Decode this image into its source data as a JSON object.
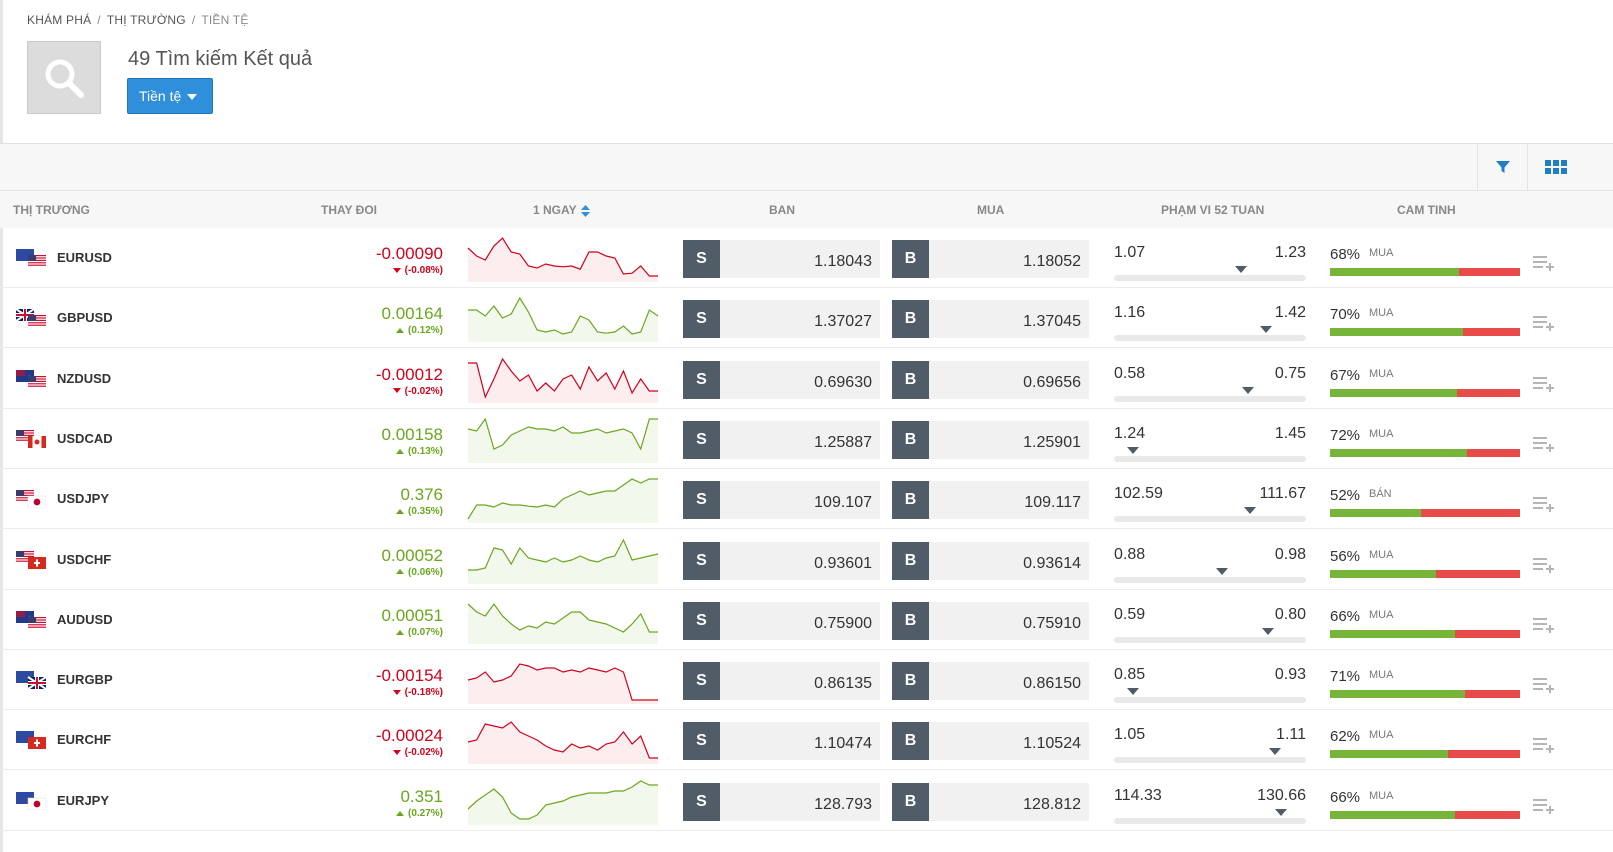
{
  "breadcrumb": [
    "KHÁM PHÁ",
    "THỊ TRƯỜNG",
    "TIỀN TỆ"
  ],
  "results_title": "49 Tìm kiếm Kết quả",
  "filter_button": {
    "label": "Tiền tệ",
    "icon": "chevron-down-icon"
  },
  "toolbar": {
    "filter_icon": "filter-icon",
    "grid_icon": "grid-view-icon"
  },
  "columns": {
    "market": "THỊ TRƯƠNG",
    "change": "THAY ĐOI",
    "day": "1 NGAY",
    "sell": "BAN",
    "buy": "MUA",
    "range52": "PHẠM VI 52 TUAN",
    "sentiment": "CAM TINH"
  },
  "colors": {
    "accent": "#2f8fdb",
    "negative": "#d0021b",
    "positive": "#6aa71f",
    "sentiment_buy": "#77b53a",
    "sentiment_sell": "#e94b4b",
    "trade_key": "#505c67"
  },
  "rows": [
    {
      "symbol": "EURUSD",
      "change": "-0.00090",
      "pct": "(-0.08%)",
      "trend": "neg",
      "sell_key": "S",
      "sell": "1.18043",
      "buy_key": "B",
      "buy": "1.18052",
      "low": "1.07",
      "high": "1.23",
      "range_pos": 0.66,
      "sent_pct": "68%",
      "sent_dir": "MUA",
      "sent_value": 0.68,
      "spark": [
        0.25,
        0.45,
        0.55,
        0.2,
        0.0,
        0.35,
        0.4,
        0.7,
        0.75,
        0.65,
        0.7,
        0.72,
        0.7,
        0.78,
        0.35,
        0.35,
        0.45,
        0.5,
        0.9,
        0.88,
        0.7,
        0.95,
        0.95
      ]
    },
    {
      "symbol": "GBPUSD",
      "change": "0.00164",
      "pct": "(0.12%)",
      "trend": "pos",
      "sell_key": "S",
      "sell": "1.37027",
      "buy_key": "B",
      "buy": "1.37045",
      "low": "1.16",
      "high": "1.42",
      "range_pos": 0.79,
      "sent_pct": "70%",
      "sent_dir": "MUA",
      "sent_value": 0.7,
      "spark": [
        0.3,
        0.3,
        0.45,
        0.2,
        0.5,
        0.4,
        0.0,
        0.35,
        0.8,
        0.85,
        0.8,
        0.9,
        0.85,
        0.45,
        0.55,
        0.85,
        0.88,
        0.85,
        0.7,
        0.9,
        0.85,
        0.3,
        0.45
      ]
    },
    {
      "symbol": "NZDUSD",
      "change": "-0.00012",
      "pct": "(-0.02%)",
      "trend": "neg",
      "sell_key": "S",
      "sell": "0.69630",
      "buy_key": "B",
      "buy": "0.69656",
      "low": "0.58",
      "high": "0.75",
      "range_pos": 0.7,
      "sent_pct": "67%",
      "sent_dir": "MUA",
      "sent_value": 0.67,
      "spark": [
        0.1,
        0.1,
        0.95,
        0.5,
        0.0,
        0.3,
        0.55,
        0.4,
        0.8,
        0.6,
        0.8,
        0.5,
        0.4,
        0.75,
        0.2,
        0.55,
        0.35,
        0.75,
        0.3,
        0.85,
        0.5,
        0.8,
        0.8
      ]
    },
    {
      "symbol": "USDCAD",
      "change": "0.00158",
      "pct": "(0.13%)",
      "trend": "pos",
      "sell_key": "S",
      "sell": "1.25887",
      "buy_key": "B",
      "buy": "1.25901",
      "low": "1.24",
      "high": "1.45",
      "range_pos": 0.1,
      "sent_pct": "72%",
      "sent_dir": "MUA",
      "sent_value": 0.72,
      "spark": [
        0.25,
        0.3,
        0.0,
        0.75,
        0.65,
        0.4,
        0.3,
        0.2,
        0.25,
        0.25,
        0.3,
        0.2,
        0.35,
        0.35,
        0.3,
        0.25,
        0.35,
        0.3,
        0.25,
        0.35,
        0.75,
        0.0,
        0.0
      ]
    },
    {
      "symbol": "USDJPY",
      "change": "0.376",
      "pct": "(0.35%)",
      "trend": "pos",
      "sell_key": "S",
      "sell": "109.107",
      "buy_key": "B",
      "buy": "109.117",
      "low": "102.59",
      "high": "111.67",
      "range_pos": 0.71,
      "sent_pct": "52%",
      "sent_dir": "BÁN",
      "sent_value": 0.48,
      "spark": [
        1.0,
        0.65,
        0.65,
        0.7,
        0.6,
        0.65,
        0.65,
        0.68,
        0.7,
        0.65,
        0.7,
        0.5,
        0.4,
        0.3,
        0.4,
        0.35,
        0.3,
        0.3,
        0.15,
        0.0,
        0.1,
        0.0,
        0.0
      ]
    },
    {
      "symbol": "USDCHF",
      "change": "0.00052",
      "pct": "(0.06%)",
      "trend": "pos",
      "sell_key": "S",
      "sell": "0.93601",
      "buy_key": "B",
      "buy": "0.93614",
      "low": "0.88",
      "high": "0.98",
      "range_pos": 0.56,
      "sent_pct": "56%",
      "sent_dir": "MUA",
      "sent_value": 0.56,
      "spark": [
        0.75,
        0.75,
        0.7,
        0.2,
        0.25,
        0.6,
        0.2,
        0.45,
        0.5,
        0.55,
        0.45,
        0.55,
        0.5,
        0.4,
        0.5,
        0.55,
        0.45,
        0.4,
        0.0,
        0.5,
        0.45,
        0.4,
        0.35
      ]
    },
    {
      "symbol": "AUDUSD",
      "change": "0.00051",
      "pct": "(0.07%)",
      "trend": "pos",
      "sell_key": "S",
      "sell": "0.75900",
      "buy_key": "B",
      "buy": "0.75910",
      "low": "0.59",
      "high": "0.80",
      "range_pos": 0.8,
      "sent_pct": "66%",
      "sent_dir": "MUA",
      "sent_value": 0.66,
      "spark": [
        0.1,
        0.3,
        0.4,
        0.1,
        0.4,
        0.6,
        0.75,
        0.65,
        0.7,
        0.55,
        0.6,
        0.45,
        0.3,
        0.3,
        0.5,
        0.55,
        0.6,
        0.7,
        0.8,
        0.6,
        0.35,
        0.8,
        0.8
      ]
    },
    {
      "symbol": "EURGBP",
      "change": "-0.00154",
      "pct": "(-0.18%)",
      "trend": "neg",
      "sell_key": "S",
      "sell": "0.86135",
      "buy_key": "B",
      "buy": "0.86150",
      "low": "0.85",
      "high": "0.93",
      "range_pos": 0.1,
      "sent_pct": "71%",
      "sent_dir": "MUA",
      "sent_value": 0.71,
      "spark": [
        0.5,
        0.45,
        0.3,
        0.55,
        0.5,
        0.4,
        0.1,
        0.15,
        0.25,
        0.2,
        0.2,
        0.3,
        0.25,
        0.3,
        0.2,
        0.25,
        0.3,
        0.2,
        0.3,
        1.0,
        1.0,
        1.0,
        1.0
      ]
    },
    {
      "symbol": "EURCHF",
      "change": "-0.00024",
      "pct": "(-0.02%)",
      "trend": "neg",
      "sell_key": "S",
      "sell": "1.10474",
      "buy_key": "B",
      "buy": "1.10524",
      "low": "1.05",
      "high": "1.11",
      "range_pos": 0.84,
      "sent_pct": "62%",
      "sent_dir": "MUA",
      "sent_value": 0.62,
      "spark": [
        0.55,
        0.5,
        0.1,
        0.15,
        0.2,
        0.05,
        0.3,
        0.4,
        0.5,
        0.65,
        0.75,
        0.8,
        0.6,
        0.7,
        0.65,
        0.75,
        0.6,
        0.55,
        0.3,
        0.6,
        0.4,
        0.95,
        0.95
      ]
    },
    {
      "symbol": "EURJPY",
      "change": "0.351",
      "pct": "(0.27%)",
      "trend": "pos",
      "sell_key": "S",
      "sell": "128.793",
      "buy_key": "B",
      "buy": "128.812",
      "low": "114.33",
      "high": "130.66",
      "range_pos": 0.87,
      "sent_pct": "66%",
      "sent_dir": "MUA",
      "sent_value": 0.66,
      "spark": [
        0.7,
        0.5,
        0.35,
        0.2,
        0.4,
        0.8,
        0.95,
        0.95,
        0.85,
        0.6,
        0.55,
        0.5,
        0.4,
        0.35,
        0.3,
        0.3,
        0.3,
        0.25,
        0.25,
        0.15,
        0.0,
        0.1,
        0.1
      ]
    }
  ]
}
